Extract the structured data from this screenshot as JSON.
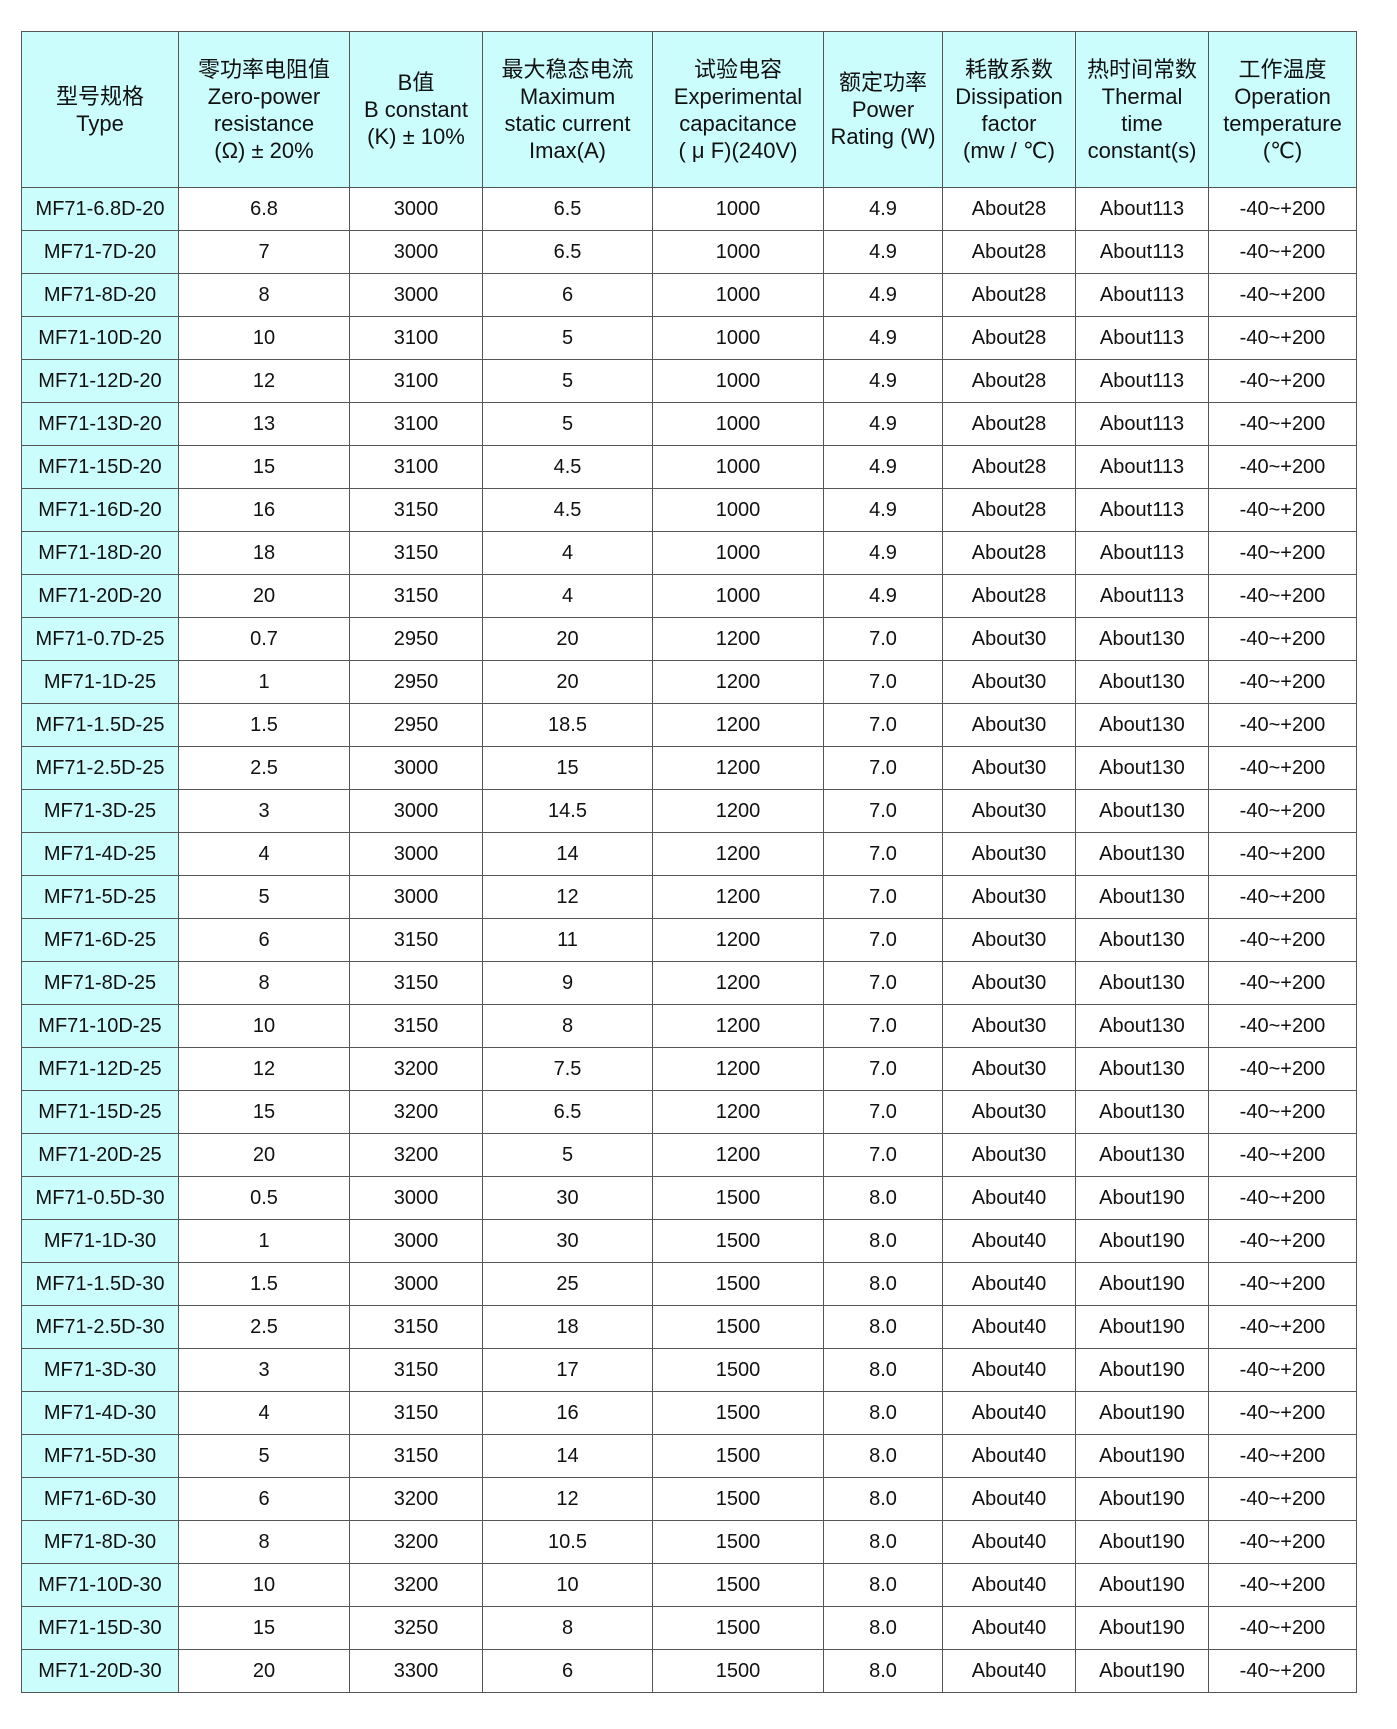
{
  "colors": {
    "header_bg": "#ccfdfd",
    "border": "#555555"
  },
  "headers": [
    [
      "型号规格",
      "Type"
    ],
    [
      "零功率电阻值",
      "Zero-power",
      "resistance",
      "(Ω) ± 20%"
    ],
    [
      "B值",
      "B constant",
      "(K)  ± 10%"
    ],
    [
      "最大稳态电流",
      "Maximum",
      "static current",
      "Imax(A)"
    ],
    [
      "试验电容",
      "Experimental",
      "capacitance",
      "( μ F)(240V)"
    ],
    [
      "额定功率",
      "Power",
      "Rating (W)"
    ],
    [
      "耗散系数",
      "Dissipation",
      "factor",
      "(mw / ℃)"
    ],
    [
      "热时间常数",
      "Thermal",
      "time",
      "constant(s)"
    ],
    [
      "工作温度",
      "Operation",
      "temperature",
      "(℃)"
    ]
  ],
  "rows": [
    [
      "MF71-6.8D-20",
      "6.8",
      "3000",
      "6.5",
      "1000",
      "4.9",
      "About28",
      "About113",
      "-40~+200"
    ],
    [
      "MF71-7D-20",
      "7",
      "3000",
      "6.5",
      "1000",
      "4.9",
      "About28",
      "About113",
      "-40~+200"
    ],
    [
      "MF71-8D-20",
      "8",
      "3000",
      "6",
      "1000",
      "4.9",
      "About28",
      "About113",
      "-40~+200"
    ],
    [
      "MF71-10D-20",
      "10",
      "3100",
      "5",
      "1000",
      "4.9",
      "About28",
      "About113",
      "-40~+200"
    ],
    [
      "MF71-12D-20",
      "12",
      "3100",
      "5",
      "1000",
      "4.9",
      "About28",
      "About113",
      "-40~+200"
    ],
    [
      "MF71-13D-20",
      "13",
      "3100",
      "5",
      "1000",
      "4.9",
      "About28",
      "About113",
      "-40~+200"
    ],
    [
      "MF71-15D-20",
      "15",
      "3100",
      "4.5",
      "1000",
      "4.9",
      "About28",
      "About113",
      "-40~+200"
    ],
    [
      "MF71-16D-20",
      "16",
      "3150",
      "4.5",
      "1000",
      "4.9",
      "About28",
      "About113",
      "-40~+200"
    ],
    [
      "MF71-18D-20",
      "18",
      "3150",
      "4",
      "1000",
      "4.9",
      "About28",
      "About113",
      "-40~+200"
    ],
    [
      "MF71-20D-20",
      "20",
      "3150",
      "4",
      "1000",
      "4.9",
      "About28",
      "About113",
      "-40~+200"
    ],
    [
      "MF71-0.7D-25",
      "0.7",
      "2950",
      "20",
      "1200",
      "7.0",
      "About30",
      "About130",
      "-40~+200"
    ],
    [
      "MF71-1D-25",
      "1",
      "2950",
      "20",
      "1200",
      "7.0",
      "About30",
      "About130",
      "-40~+200"
    ],
    [
      "MF71-1.5D-25",
      "1.5",
      "2950",
      "18.5",
      "1200",
      "7.0",
      "About30",
      "About130",
      "-40~+200"
    ],
    [
      "MF71-2.5D-25",
      "2.5",
      "3000",
      "15",
      "1200",
      "7.0",
      "About30",
      "About130",
      "-40~+200"
    ],
    [
      "MF71-3D-25",
      "3",
      "3000",
      "14.5",
      "1200",
      "7.0",
      "About30",
      "About130",
      "-40~+200"
    ],
    [
      "MF71-4D-25",
      "4",
      "3000",
      "14",
      "1200",
      "7.0",
      "About30",
      "About130",
      "-40~+200"
    ],
    [
      "MF71-5D-25",
      "5",
      "3000",
      "12",
      "1200",
      "7.0",
      "About30",
      "About130",
      "-40~+200"
    ],
    [
      "MF71-6D-25",
      "6",
      "3150",
      "11",
      "1200",
      "7.0",
      "About30",
      "About130",
      "-40~+200"
    ],
    [
      "MF71-8D-25",
      "8",
      "3150",
      "9",
      "1200",
      "7.0",
      "About30",
      "About130",
      "-40~+200"
    ],
    [
      "MF71-10D-25",
      "10",
      "3150",
      "8",
      "1200",
      "7.0",
      "About30",
      "About130",
      "-40~+200"
    ],
    [
      "MF71-12D-25",
      "12",
      "3200",
      "7.5",
      "1200",
      "7.0",
      "About30",
      "About130",
      "-40~+200"
    ],
    [
      "MF71-15D-25",
      "15",
      "3200",
      "6.5",
      "1200",
      "7.0",
      "About30",
      "About130",
      "-40~+200"
    ],
    [
      "MF71-20D-25",
      "20",
      "3200",
      "5",
      "1200",
      "7.0",
      "About30",
      "About130",
      "-40~+200"
    ],
    [
      "MF71-0.5D-30",
      "0.5",
      "3000",
      "30",
      "1500",
      "8.0",
      "About40",
      "About190",
      "-40~+200"
    ],
    [
      "MF71-1D-30",
      "1",
      "3000",
      "30",
      "1500",
      "8.0",
      "About40",
      "About190",
      "-40~+200"
    ],
    [
      "MF71-1.5D-30",
      "1.5",
      "3000",
      "25",
      "1500",
      "8.0",
      "About40",
      "About190",
      "-40~+200"
    ],
    [
      "MF71-2.5D-30",
      "2.5",
      "3150",
      "18",
      "1500",
      "8.0",
      "About40",
      "About190",
      "-40~+200"
    ],
    [
      "MF71-3D-30",
      "3",
      "3150",
      "17",
      "1500",
      "8.0",
      "About40",
      "About190",
      "-40~+200"
    ],
    [
      "MF71-4D-30",
      "4",
      "3150",
      "16",
      "1500",
      "8.0",
      "About40",
      "About190",
      "-40~+200"
    ],
    [
      "MF71-5D-30",
      "5",
      "3150",
      "14",
      "1500",
      "8.0",
      "About40",
      "About190",
      "-40~+200"
    ],
    [
      "MF71-6D-30",
      "6",
      "3200",
      "12",
      "1500",
      "8.0",
      "About40",
      "About190",
      "-40~+200"
    ],
    [
      "MF71-8D-30",
      "8",
      "3200",
      "10.5",
      "1500",
      "8.0",
      "About40",
      "About190",
      "-40~+200"
    ],
    [
      "MF71-10D-30",
      "10",
      "3200",
      "10",
      "1500",
      "8.0",
      "About40",
      "About190",
      "-40~+200"
    ],
    [
      "MF71-15D-30",
      "15",
      "3250",
      "8",
      "1500",
      "8.0",
      "About40",
      "About190",
      "-40~+200"
    ],
    [
      "MF71-20D-30",
      "20",
      "3300",
      "6",
      "1500",
      "8.0",
      "About40",
      "About190",
      "-40~+200"
    ]
  ]
}
